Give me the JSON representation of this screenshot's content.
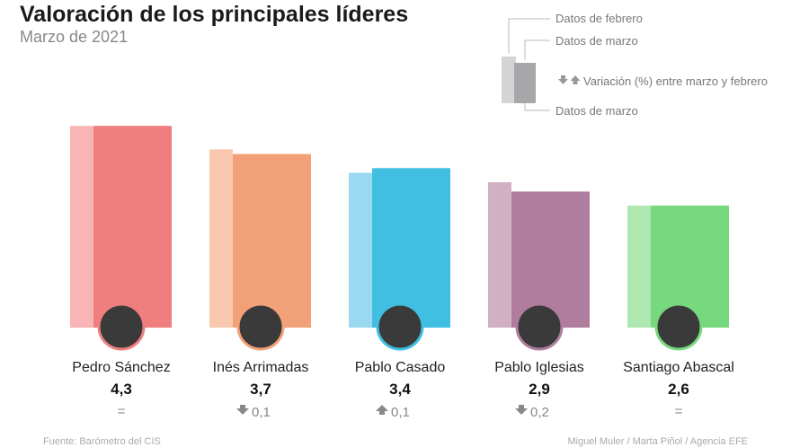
{
  "header": {
    "title": "Valoración de los principales líderes",
    "subtitle": "Marzo de 2021"
  },
  "legend": {
    "feb_label": "Datos de febrero",
    "mar_label": "Datos de marzo",
    "variation_label": "Variación (%) entre marzo y febrero",
    "mar_label_bottom": "Datos de marzo",
    "feb_color": "#d4d4d6",
    "mar_color": "#a7a7a9",
    "arrow_color": "#999999"
  },
  "footer": {
    "source": "Fuente: Barómetro del CIS",
    "credit": "Miguel Muler / Marta Piñol / Agencia EFE"
  },
  "chart_data": {
    "type": "bar",
    "categories": [
      "Pedro Sánchez",
      "Inés Arrimadas",
      "Pablo Casado",
      "Pablo Iglesias",
      "Santiago Abascal"
    ],
    "series": [
      {
        "name": "Datos de febrero",
        "values": [
          4.3,
          3.8,
          3.3,
          3.1,
          2.6
        ]
      },
      {
        "name": "Datos de marzo",
        "values": [
          4.3,
          3.7,
          3.4,
          2.9,
          2.6
        ]
      }
    ],
    "value_labels": [
      "4,3",
      "3,7",
      "3,4",
      "2,9",
      "2,6"
    ],
    "variations": [
      {
        "direction": "none",
        "text": "="
      },
      {
        "direction": "down",
        "text": "0,1"
      },
      {
        "direction": "up",
        "text": "0,1"
      },
      {
        "direction": "down",
        "text": "0,2"
      },
      {
        "direction": "none",
        "text": "="
      }
    ],
    "colors": {
      "march": [
        "#f07e7f",
        "#f2a077",
        "#40bfe3",
        "#b07d9e",
        "#77d97d"
      ],
      "february": [
        "#f9b4b5",
        "#f8c9ae",
        "#9ad9ef",
        "#d2b0c4",
        "#aee8b0"
      ]
    },
    "ylim": [
      0,
      4.4
    ]
  }
}
